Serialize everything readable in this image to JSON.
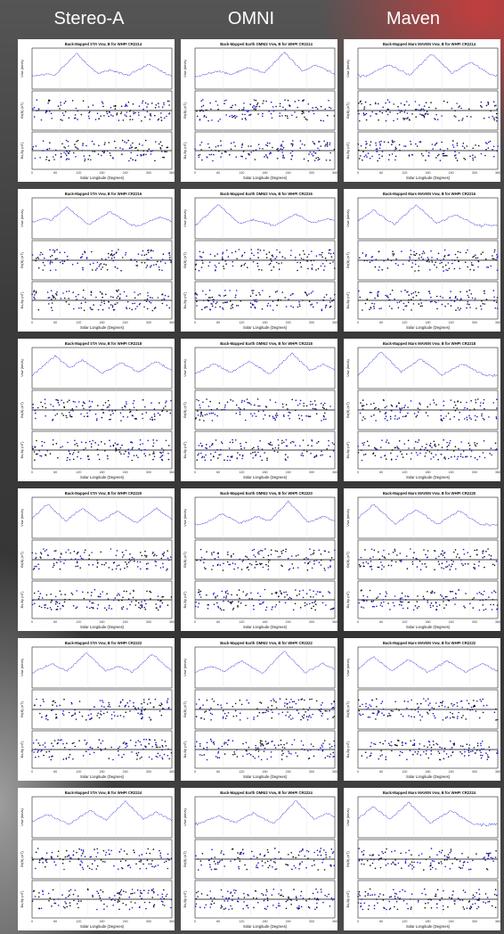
{
  "columns": [
    {
      "label": "Stereo-A"
    },
    {
      "label": "OMNI"
    },
    {
      "label": "Maven"
    }
  ],
  "row_cr": [
    "CR2214",
    "CR2216",
    "CR2218",
    "CR2220",
    "CR2222",
    "CR2224"
  ],
  "colors": {
    "vsw": "#2a2ae0",
    "b_pos": "#1a1acc",
    "b_neg": "#111111",
    "panel_bg": "#ffffff"
  },
  "chart_data": [
    {
      "type": "scatter",
      "title": "Back-Mapped STA Vsw, B for WHPI CR2214",
      "xlabel": "Solar Longitude (Degrees)",
      "ylabels": [
        "Vsw (km/s)",
        "Br(B) (nT)",
        "Bx,By (nT)"
      ],
      "xlim": [
        0,
        360
      ],
      "ylim": [
        [
          200,
          800
        ],
        [
          -15,
          15
        ],
        [
          -15,
          15
        ]
      ],
      "series": [
        {
          "name": "Vsw",
          "peaks": [
            [
              40,
              420
            ],
            [
              115,
              720
            ],
            [
              200,
              480
            ],
            [
              300,
              560
            ]
          ]
        }
      ]
    },
    {
      "type": "scatter",
      "title": "Back-Mapped Earth OMNI2 Vsw, B for WHPI CR2214",
      "xlabel": "Solar Longitude (Degrees)",
      "ylabels": [
        "Vsw (km/s)",
        "Br(B) (nT)",
        "Bx,By (nT)"
      ],
      "xlim": [
        0,
        360
      ],
      "ylim": [
        [
          200,
          800
        ],
        [
          -15,
          15
        ],
        [
          -15,
          15
        ]
      ],
      "series": [
        {
          "name": "Vsw",
          "peaks": [
            [
              60,
              460
            ],
            [
              140,
              520
            ],
            [
              230,
              740
            ],
            [
              310,
              560
            ]
          ]
        }
      ]
    },
    {
      "type": "scatter",
      "title": "Back-Mapped Mars MAVEN Vsw, B for WHPI CR2214",
      "xlabel": "Solar Longitude (Degrees)",
      "ylabels": [
        "Vsw (km/s)",
        "Br(B) (nT)",
        "Bx,By (nT)"
      ],
      "xlim": [
        0,
        360
      ],
      "ylim": [
        [
          200,
          800
        ],
        [
          -15,
          15
        ],
        [
          -15,
          15
        ]
      ],
      "series": [
        {
          "name": "Vsw",
          "peaks": [
            [
              80,
              560
            ],
            [
              190,
              720
            ],
            [
              290,
              600
            ]
          ]
        }
      ]
    },
    {
      "type": "scatter",
      "title": "Back-Mapped STA Vsw, B for WHPI CR2216",
      "xlabel": "Solar Longitude (Degrees)",
      "ylabels": [
        "Vsw (km/s)",
        "Br(B) (nT)",
        "Bx,By (nT)"
      ],
      "xlim": [
        0,
        360
      ],
      "ylim": [
        [
          200,
          800
        ],
        [
          -15,
          15
        ],
        [
          -15,
          15
        ]
      ],
      "series": [
        {
          "name": "Vsw",
          "peaks": [
            [
              30,
              500
            ],
            [
              90,
              660
            ],
            [
              200,
              600
            ],
            [
              330,
              520
            ]
          ]
        }
      ]
    },
    {
      "type": "scatter",
      "title": "Back-Mapped Earth OMNI2 Vsw, B for WHPI CR2216",
      "xlabel": "Solar Longitude (Degrees)",
      "ylabels": [
        "Vsw (km/s)",
        "Br(B) (nT)",
        "Bx,By (nT)"
      ],
      "xlim": [
        0,
        360
      ],
      "ylim": [
        [
          200,
          800
        ],
        [
          -15,
          15
        ],
        [
          -15,
          15
        ]
      ],
      "series": [
        {
          "name": "Vsw",
          "peaks": [
            [
              60,
              700
            ],
            [
              150,
              480
            ],
            [
              260,
              560
            ],
            [
              340,
              500
            ]
          ]
        }
      ]
    },
    {
      "type": "scatter",
      "title": "Back-Mapped Mars MAVEN Vsw, B for WHPI CR2216",
      "xlabel": "Solar Longitude (Degrees)",
      "ylabels": [
        "Vsw (km/s)",
        "Br(B) (nT)",
        "Bx,By (nT)"
      ],
      "xlim": [
        0,
        360
      ],
      "ylim": [
        [
          200,
          800
        ],
        [
          -15,
          15
        ],
        [
          -15,
          15
        ]
      ],
      "series": [
        {
          "name": "Vsw",
          "peaks": [
            [
              40,
              620
            ],
            [
              150,
              700
            ],
            [
              250,
              560
            ]
          ]
        }
      ]
    },
    {
      "type": "scatter",
      "title": "Back-Mapped STA Vsw, B for WHPI CR2218",
      "xlabel": "Solar Longitude (Degrees)",
      "ylabels": [
        "Vsw (km/s)",
        "Br(B) (nT)",
        "Bx,By (nT)"
      ],
      "xlim": [
        0,
        360
      ],
      "ylim": [
        [
          200,
          800
        ],
        [
          -15,
          15
        ],
        [
          -15,
          15
        ]
      ],
      "series": [
        {
          "name": "Vsw",
          "peaks": [
            [
              60,
              680
            ],
            [
              130,
              620
            ],
            [
              230,
              580
            ],
            [
              320,
              600
            ]
          ]
        }
      ]
    },
    {
      "type": "scatter",
      "title": "Back-Mapped Earth OMNI2 Vsw, B for WHPI CR2218",
      "xlabel": "Solar Longitude (Degrees)",
      "ylabels": [
        "Vsw (km/s)",
        "Br(B) (nT)",
        "Bx,By (nT)"
      ],
      "xlim": [
        0,
        360
      ],
      "ylim": [
        [
          200,
          800
        ],
        [
          -15,
          15
        ],
        [
          -15,
          15
        ]
      ],
      "series": [
        {
          "name": "Vsw",
          "peaks": [
            [
              50,
              560
            ],
            [
              140,
              600
            ],
            [
              250,
              720
            ],
            [
              330,
              560
            ]
          ]
        }
      ]
    },
    {
      "type": "scatter",
      "title": "Back-Mapped Mars MAVEN Vsw, B for WHPI CR2218",
      "xlabel": "Solar Longitude (Degrees)",
      "ylabels": [
        "Vsw (km/s)",
        "Br(B) (nT)",
        "Bx,By (nT)"
      ],
      "xlim": [
        0,
        360
      ],
      "ylim": [
        [
          200,
          800
        ],
        [
          -15,
          15
        ],
        [
          -15,
          15
        ]
      ],
      "series": [
        {
          "name": "Vsw",
          "peaks": [
            [
              60,
              740
            ],
            [
              160,
              640
            ],
            [
              270,
              560
            ]
          ]
        }
      ]
    },
    {
      "type": "scatter",
      "title": "Back-Mapped STA Vsw, B for WHPI CR2220",
      "xlabel": "Solar Longitude (Degrees)",
      "ylabels": [
        "Vsw (km/s)",
        "Br(B) (nT)",
        "Bx,By (nT)"
      ],
      "xlim": [
        0,
        360
      ],
      "ylim": [
        [
          200,
          800
        ],
        [
          -15,
          15
        ],
        [
          -15,
          15
        ]
      ],
      "series": [
        {
          "name": "Vsw",
          "peaks": [
            [
              40,
              700
            ],
            [
              130,
              640
            ],
            [
              220,
              600
            ],
            [
              320,
              640
            ]
          ]
        }
      ]
    },
    {
      "type": "scatter",
      "title": "Back-Mapped Earth OMNI2 Vsw, B for WHPI CR2220",
      "xlabel": "Solar Longitude (Degrees)",
      "ylabels": [
        "Vsw (km/s)",
        "Br(B) (nT)",
        "Bx,By (nT)"
      ],
      "xlim": [
        0,
        360
      ],
      "ylim": [
        [
          200,
          800
        ],
        [
          -15,
          15
        ],
        [
          -15,
          15
        ]
      ],
      "series": [
        {
          "name": "Vsw",
          "peaks": [
            [
              70,
              560
            ],
            [
              160,
              520
            ],
            [
              240,
              740
            ],
            [
              330,
              520
            ]
          ]
        }
      ]
    },
    {
      "type": "scatter",
      "title": "Back-Mapped Mars MAVEN Vsw, B for WHPI CR2220",
      "xlabel": "Solar Longitude (Degrees)",
      "ylabels": [
        "Vsw (km/s)",
        "Br(B) (nT)",
        "Bx,By (nT)"
      ],
      "xlim": [
        0,
        360
      ],
      "ylim": [
        [
          200,
          800
        ],
        [
          -15,
          15
        ],
        [
          -15,
          15
        ]
      ],
      "series": [
        {
          "name": "Vsw",
          "peaks": [
            [
              40,
              700
            ],
            [
              150,
              620
            ],
            [
              260,
              600
            ]
          ]
        }
      ]
    },
    {
      "type": "scatter",
      "title": "Back-Mapped STA Vsw, B for WHPI CR2222",
      "xlabel": "Solar Longitude (Degrees)",
      "ylabels": [
        "Vsw (km/s)",
        "Br(B) (nT)",
        "Bx,By (nT)"
      ],
      "xlim": [
        0,
        360
      ],
      "ylim": [
        [
          200,
          800
        ],
        [
          -15,
          15
        ],
        [
          -15,
          15
        ]
      ],
      "series": [
        {
          "name": "Vsw",
          "peaks": [
            [
              50,
              560
            ],
            [
              140,
              720
            ],
            [
              220,
              520
            ],
            [
              310,
              700
            ]
          ]
        }
      ]
    },
    {
      "type": "scatter",
      "title": "Back-Mapped Earth OMNI2 Vsw, B for WHPI CR2222",
      "xlabel": "Solar Longitude (Degrees)",
      "ylabels": [
        "Vsw (km/s)",
        "Br(B) (nT)",
        "Bx,By (nT)"
      ],
      "xlim": [
        0,
        360
      ],
      "ylim": [
        [
          200,
          800
        ],
        [
          -15,
          15
        ],
        [
          -15,
          15
        ]
      ],
      "series": [
        {
          "name": "Vsw",
          "peaks": [
            [
              40,
              520
            ],
            [
              120,
              600
            ],
            [
              230,
              740
            ],
            [
              330,
              560
            ]
          ]
        }
      ]
    },
    {
      "type": "scatter",
      "title": "Back-Mapped Mars MAVEN Vsw, B for WHPI CR2222",
      "xlabel": "Solar Longitude (Degrees)",
      "ylabels": [
        "Vsw (km/s)",
        "Br(B) (nT)",
        "Bx,By (nT)"
      ],
      "xlim": [
        0,
        360
      ],
      "ylim": [
        [
          200,
          800
        ],
        [
          -15,
          15
        ],
        [
          -15,
          15
        ]
      ],
      "series": [
        {
          "name": "Vsw",
          "peaks": [
            [
              40,
              660
            ],
            [
              130,
              620
            ],
            [
              230,
              600
            ],
            [
              320,
              560
            ]
          ]
        }
      ]
    },
    {
      "type": "scatter",
      "title": "Back-Mapped STA Vsw, B for WHPI CR2224",
      "xlabel": "Solar Longitude (Degrees)",
      "ylabels": [
        "Vsw (km/s)",
        "Br(B) (nT)",
        "Bx,By (nT)"
      ],
      "xlim": [
        0,
        360
      ],
      "ylim": [
        [
          200,
          800
        ],
        [
          -15,
          15
        ],
        [
          -15,
          15
        ]
      ],
      "series": [
        {
          "name": "Vsw",
          "peaks": [
            [
              40,
              540
            ],
            [
              150,
              600
            ],
            [
              240,
              740
            ],
            [
              320,
              580
            ]
          ]
        }
      ]
    },
    {
      "type": "scatter",
      "title": "Back-Mapped Earth OMNI2 Vsw, B for WHPI CR2224",
      "xlabel": "Solar Longitude (Degrees)",
      "ylabels": [
        "Vsw (km/s)",
        "Br(B) (nT)",
        "Bx,By (nT)"
      ],
      "xlim": [
        0,
        360
      ],
      "ylim": [
        [
          200,
          800
        ],
        [
          -15,
          15
        ],
        [
          -15,
          15
        ]
      ],
      "series": [
        {
          "name": "Vsw",
          "peaks": [
            [
              60,
              520
            ],
            [
              150,
              560
            ],
            [
              260,
              740
            ],
            [
              340,
              560
            ]
          ]
        }
      ]
    },
    {
      "type": "scatter",
      "title": "Back-Mapped Mars MAVEN Vsw, B for WHPI CR2224",
      "xlabel": "Solar Longitude (Degrees)",
      "ylabels": [
        "Vsw (km/s)",
        "Br(B) (nT)",
        "Bx,By (nT)"
      ],
      "xlim": [
        0,
        360
      ],
      "ylim": [
        [
          200,
          800
        ],
        [
          -15,
          15
        ],
        [
          -15,
          15
        ]
      ],
      "series": [
        {
          "name": "Vsw",
          "peaks": [
            [
              40,
              660
            ],
            [
              130,
              720
            ],
            [
              240,
              600
            ]
          ]
        }
      ]
    }
  ]
}
